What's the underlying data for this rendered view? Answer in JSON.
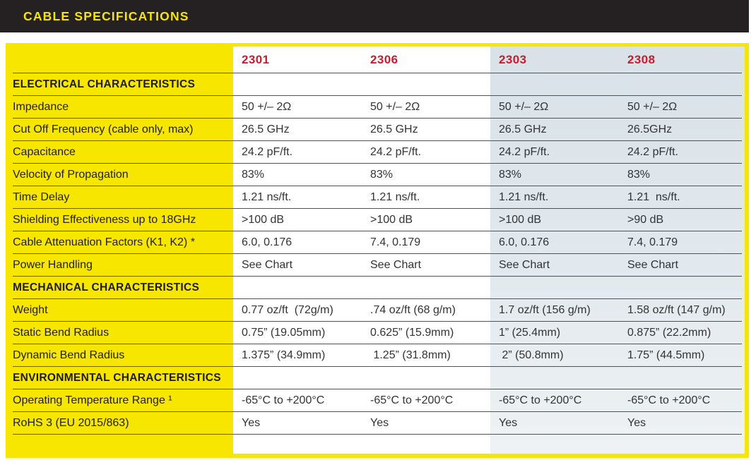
{
  "colors": {
    "accent_yellow": "#f7e600",
    "brand_red": "#c22031",
    "header_bar": "#252122",
    "highlight_column": "#dde5ea",
    "row_line": "#505254"
  },
  "header": {
    "title": "CABLE SPECIFICATIONS"
  },
  "table": {
    "columns": [
      "2301",
      "2306",
      "2303",
      "2308"
    ],
    "rows": [
      {
        "type": "section",
        "label": "ELECTRICAL CHARACTERISTICS"
      },
      {
        "type": "data",
        "label": "Impedance",
        "values": [
          "50 +/– 2Ω",
          "50 +/– 2Ω",
          "50 +/– 2Ω",
          "50 +/– 2Ω"
        ]
      },
      {
        "type": "data",
        "label": "Cut Off Frequency (cable only, max)",
        "values": [
          "26.5 GHz",
          "26.5 GHz",
          "26.5 GHz",
          "26.5GHz"
        ]
      },
      {
        "type": "data",
        "label": "Capacitance",
        "values": [
          "24.2 pF/ft.",
          "24.2 pF/ft.",
          "24.2 pF/ft.",
          "24.2 pF/ft."
        ]
      },
      {
        "type": "data",
        "label": "Velocity of Propagation",
        "values": [
          "83%",
          "83%",
          "83%",
          "83%"
        ]
      },
      {
        "type": "data",
        "label": "Time Delay",
        "values": [
          "1.21 ns/ft.",
          "1.21 ns/ft.",
          "1.21 ns/ft.",
          "1.21  ns/ft."
        ]
      },
      {
        "type": "data",
        "label": "Shielding Effectiveness up to 18GHz",
        "values": [
          ">100 dB",
          ">100 dB",
          ">100 dB",
          ">90 dB"
        ]
      },
      {
        "type": "data",
        "label": "Cable Attenuation Factors (K1, K2) *",
        "values": [
          "6.0, 0.176",
          "7.4, 0.179",
          "6.0, 0.176",
          "7.4, 0.179"
        ]
      },
      {
        "type": "data",
        "label": "Power Handling",
        "values": [
          "See Chart",
          "See Chart",
          "See Chart",
          "See Chart"
        ]
      },
      {
        "type": "section",
        "label": "MECHANICAL CHARACTERISTICS"
      },
      {
        "type": "data",
        "label": "Weight",
        "values": [
          "0.77 oz/ft  (72g/m)",
          ".74 oz/ft (68 g/m)",
          "1.7 oz/ft (156 g/m)",
          "1.58 oz/ft (147 g/m)"
        ]
      },
      {
        "type": "data",
        "label": "Static Bend Radius",
        "values": [
          "0.75” (19.05mm)",
          "0.625” (15.9mm)",
          "1” (25.4mm)",
          "0.875” (22.2mm)"
        ]
      },
      {
        "type": "data",
        "label": "Dynamic Bend Radius",
        "values": [
          "1.375” (34.9mm)",
          " 1.25” (31.8mm)",
          " 2” (50.8mm)",
          "1.75” (44.5mm)"
        ]
      },
      {
        "type": "section",
        "label": "ENVIRONMENTAL CHARACTERISTICS"
      },
      {
        "type": "data",
        "label": "Operating Temperature Range ¹",
        "values": [
          "-65°C to +200°C",
          "-65°C to +200°C",
          "-65°C to +200°C",
          "-65°C to +200°C"
        ]
      },
      {
        "type": "data",
        "label": "RoHS 3 (EU 2015/863)",
        "values": [
          "Yes",
          "Yes",
          "Yes",
          "Yes"
        ]
      }
    ]
  }
}
